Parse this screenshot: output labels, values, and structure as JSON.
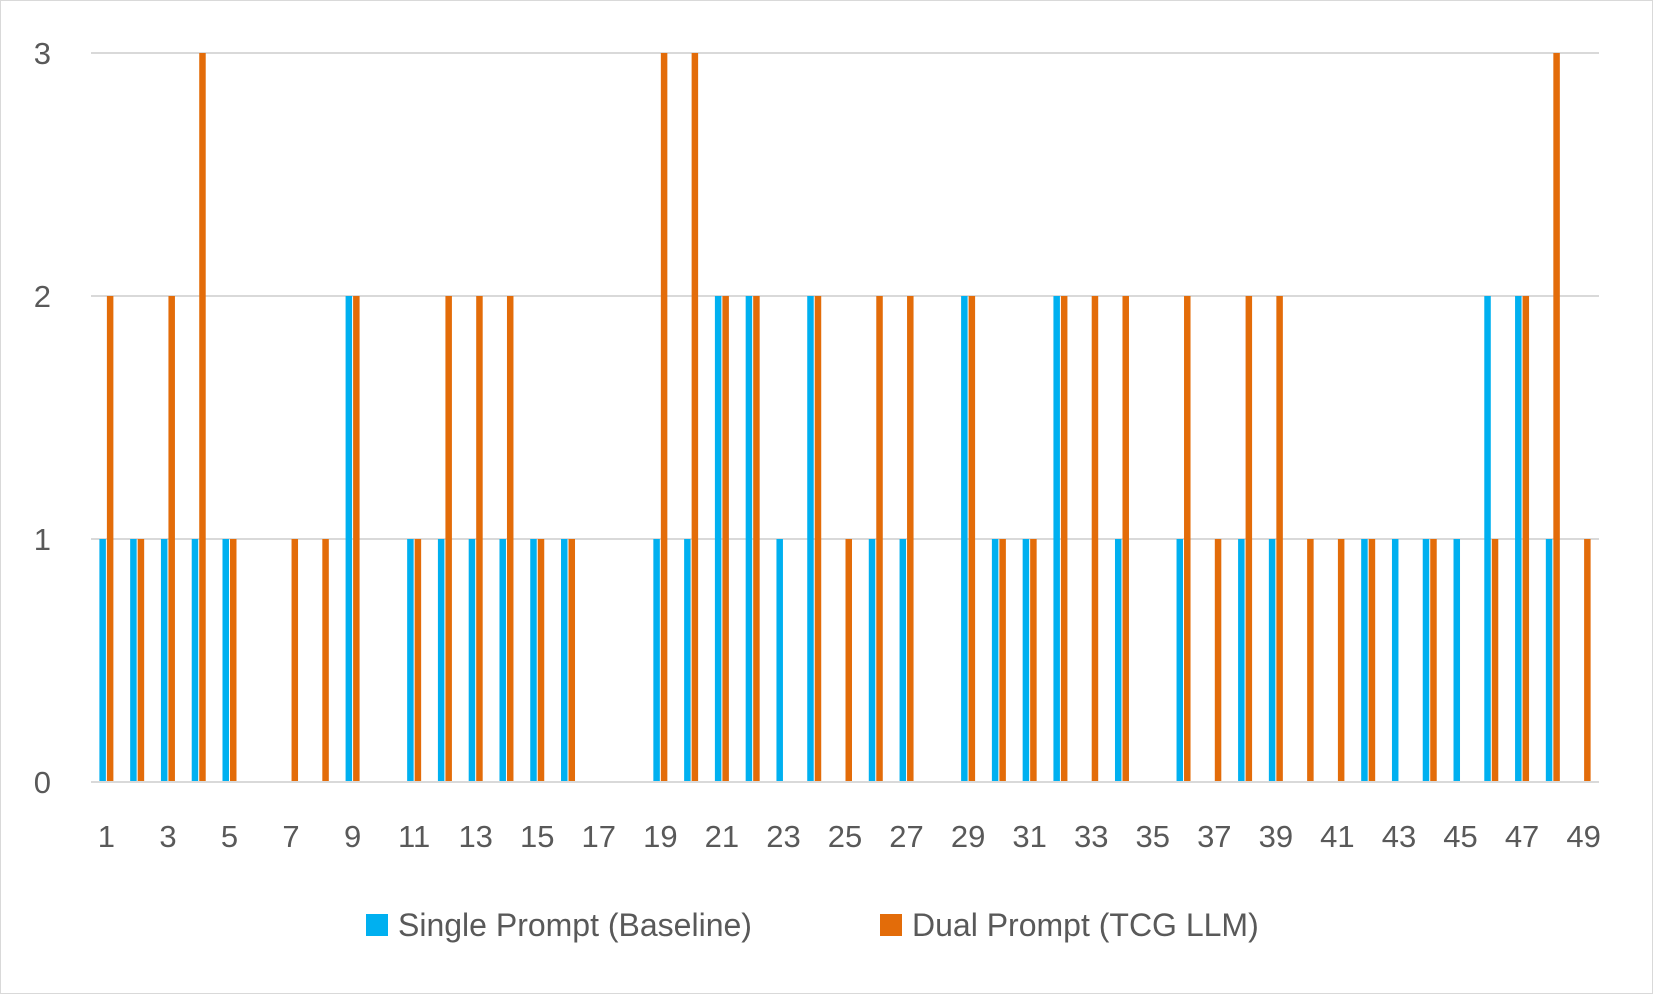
{
  "chart_data": {
    "type": "bar",
    "title": "",
    "xlabel": "",
    "ylabel": "",
    "ylim": [
      0,
      3
    ],
    "yticks": [
      0,
      1,
      2,
      3
    ],
    "grid": true,
    "legend_position": "bottom",
    "categories": [
      1,
      2,
      3,
      4,
      5,
      6,
      7,
      8,
      9,
      10,
      11,
      12,
      13,
      14,
      15,
      16,
      17,
      18,
      19,
      20,
      21,
      22,
      23,
      24,
      25,
      26,
      27,
      28,
      29,
      30,
      31,
      32,
      33,
      34,
      35,
      36,
      37,
      38,
      39,
      40,
      41,
      42,
      43,
      44,
      45,
      46,
      47,
      48,
      49
    ],
    "xtick_labels": [
      "1",
      "3",
      "5",
      "7",
      "9",
      "11",
      "13",
      "15",
      "17",
      "19",
      "21",
      "23",
      "25",
      "27",
      "29",
      "31",
      "33",
      "35",
      "37",
      "39",
      "41",
      "43",
      "45",
      "47",
      "49"
    ],
    "series": [
      {
        "name": "Single Prompt (Baseline)",
        "color": "#00b0f0",
        "values": [
          1,
          1,
          1,
          1,
          1,
          0,
          0,
          0,
          2,
          0,
          1,
          1,
          1,
          1,
          1,
          1,
          0,
          0,
          1,
          1,
          2,
          2,
          1,
          2,
          0,
          1,
          1,
          0,
          2,
          1,
          1,
          2,
          0,
          1,
          0,
          1,
          0,
          1,
          1,
          0,
          0,
          1,
          1,
          1,
          1,
          2,
          2,
          1,
          0
        ]
      },
      {
        "name": "Dual Prompt (TCG LLM)",
        "color": "#e36c09",
        "values": [
          2,
          1,
          2,
          3,
          1,
          0,
          1,
          1,
          2,
          0,
          1,
          2,
          2,
          2,
          1,
          1,
          0,
          0,
          3,
          3,
          2,
          2,
          0,
          2,
          1,
          2,
          2,
          0,
          2,
          1,
          1,
          2,
          2,
          2,
          0,
          2,
          1,
          2,
          2,
          1,
          1,
          1,
          0,
          1,
          0,
          1,
          2,
          3,
          1
        ]
      }
    ]
  }
}
